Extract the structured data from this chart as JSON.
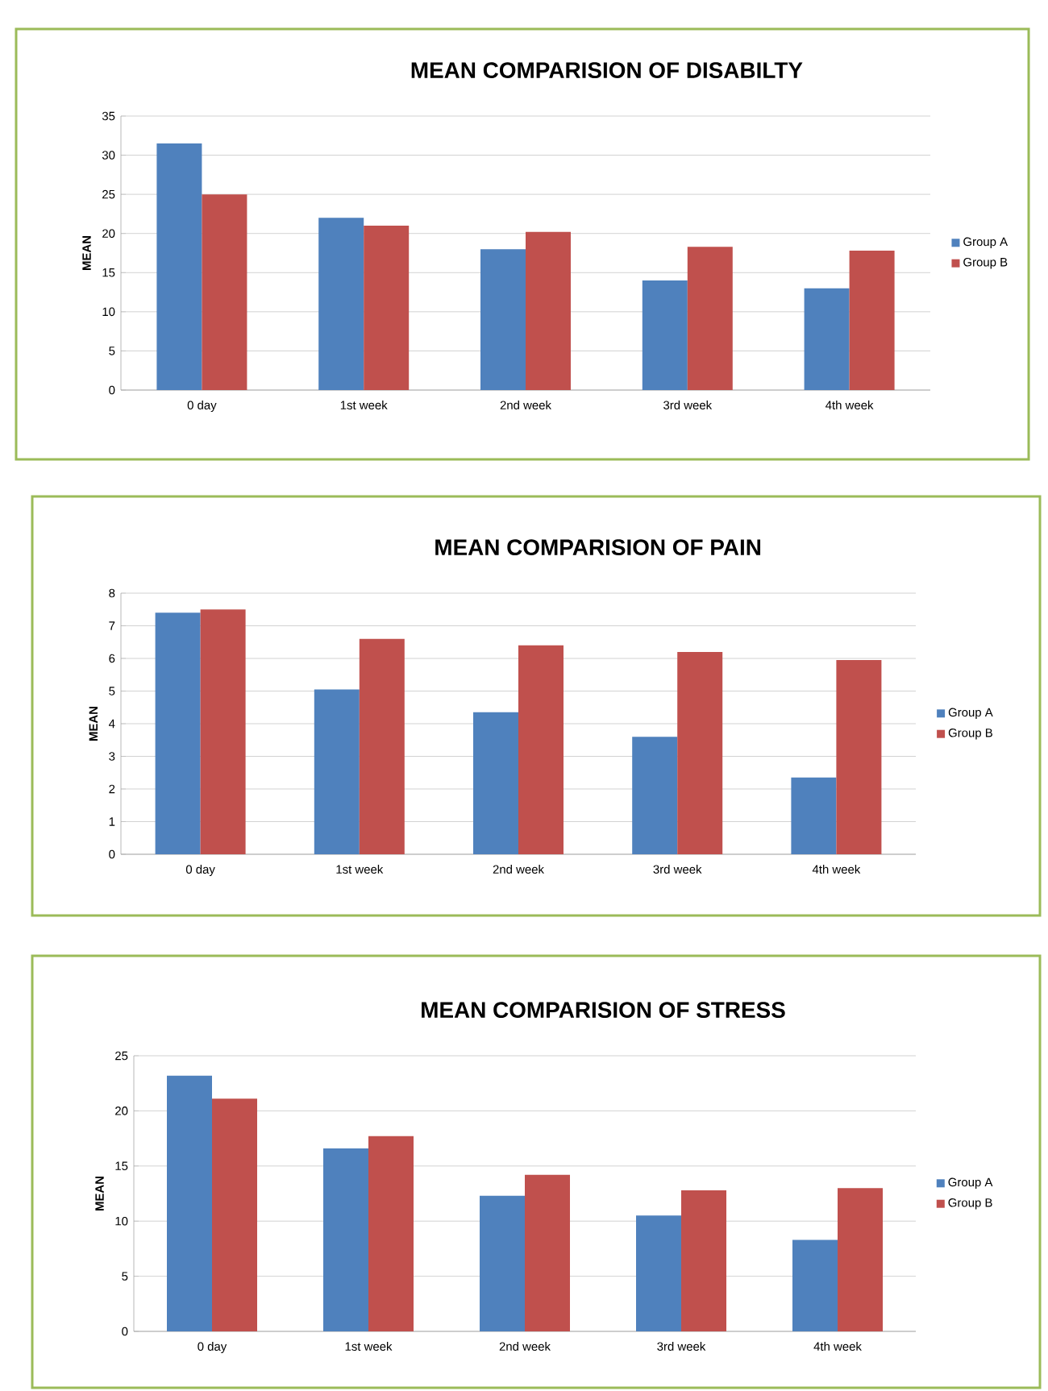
{
  "chart_data": [
    {
      "type": "bar",
      "title": "MEAN COMPARISION OF DISABILTY",
      "ylabel": "MEAN",
      "categories": [
        "0 day",
        "1st week",
        "2nd week",
        "3rd week",
        "4th week"
      ],
      "series": [
        {
          "name": "Group A",
          "color": "#4f81bd",
          "values": [
            31.5,
            22,
            18,
            14,
            13
          ]
        },
        {
          "name": "Group B",
          "color": "#c0504d",
          "values": [
            25,
            21,
            20.2,
            18.3,
            17.8
          ]
        }
      ],
      "ylim": [
        0,
        35
      ],
      "yticks": [
        0,
        5,
        10,
        15,
        20,
        25,
        30,
        35
      ],
      "grid": "y",
      "legend": "right"
    },
    {
      "type": "bar",
      "title": "MEAN COMPARISION OF PAIN",
      "ylabel": "MEAN",
      "categories": [
        "0 day",
        "1st week",
        "2nd week",
        "3rd week",
        "4th week"
      ],
      "series": [
        {
          "name": "Group A",
          "color": "#4f81bd",
          "values": [
            7.4,
            5.05,
            4.35,
            3.6,
            2.35
          ]
        },
        {
          "name": "Group B",
          "color": "#c0504d",
          "values": [
            7.5,
            6.6,
            6.4,
            6.2,
            5.95
          ]
        }
      ],
      "ylim": [
        0,
        8
      ],
      "yticks": [
        0,
        1,
        2,
        3,
        4,
        5,
        6,
        7,
        8
      ],
      "grid": "y",
      "legend": "right"
    },
    {
      "type": "bar",
      "title": "MEAN COMPARISION OF STRESS",
      "ylabel": "MEAN",
      "categories": [
        "0 day",
        "1st week",
        "2nd week",
        "3rd week",
        "4th week"
      ],
      "series": [
        {
          "name": "Group A",
          "color": "#4f81bd",
          "values": [
            23.2,
            16.6,
            12.3,
            10.5,
            8.3
          ]
        },
        {
          "name": "Group B",
          "color": "#c0504d",
          "values": [
            21.1,
            17.7,
            14.2,
            12.8,
            13.0
          ]
        }
      ],
      "ylim": [
        0,
        25
      ],
      "yticks": [
        0,
        5,
        10,
        15,
        20,
        25
      ],
      "grid": "y",
      "legend": "right"
    }
  ]
}
